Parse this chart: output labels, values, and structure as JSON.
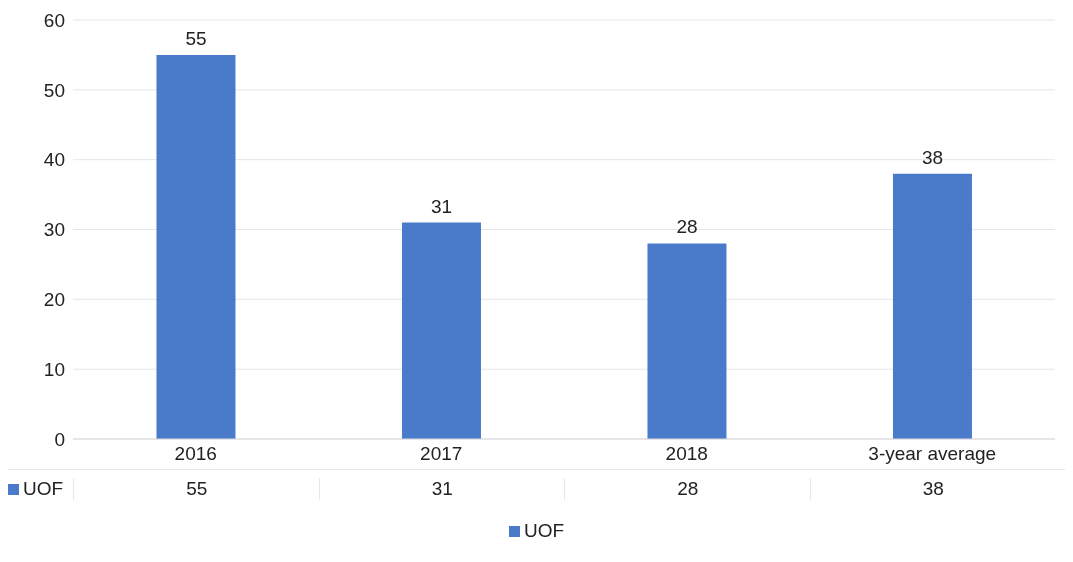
{
  "chart_data": {
    "type": "bar",
    "categories": [
      "2016",
      "2017",
      "2018",
      "3-year average"
    ],
    "series": [
      {
        "name": "UOF",
        "color": "#4a7bcb",
        "values": [
          55,
          31,
          28,
          38
        ]
      }
    ],
    "annotations": [
      "55",
      "31",
      "28",
      "38"
    ],
    "ylim": [
      0,
      60
    ],
    "yticks": [
      0,
      10,
      20,
      30,
      40,
      50,
      60
    ],
    "grid": "y",
    "legend": "bottom",
    "data_labels": true
  }
}
